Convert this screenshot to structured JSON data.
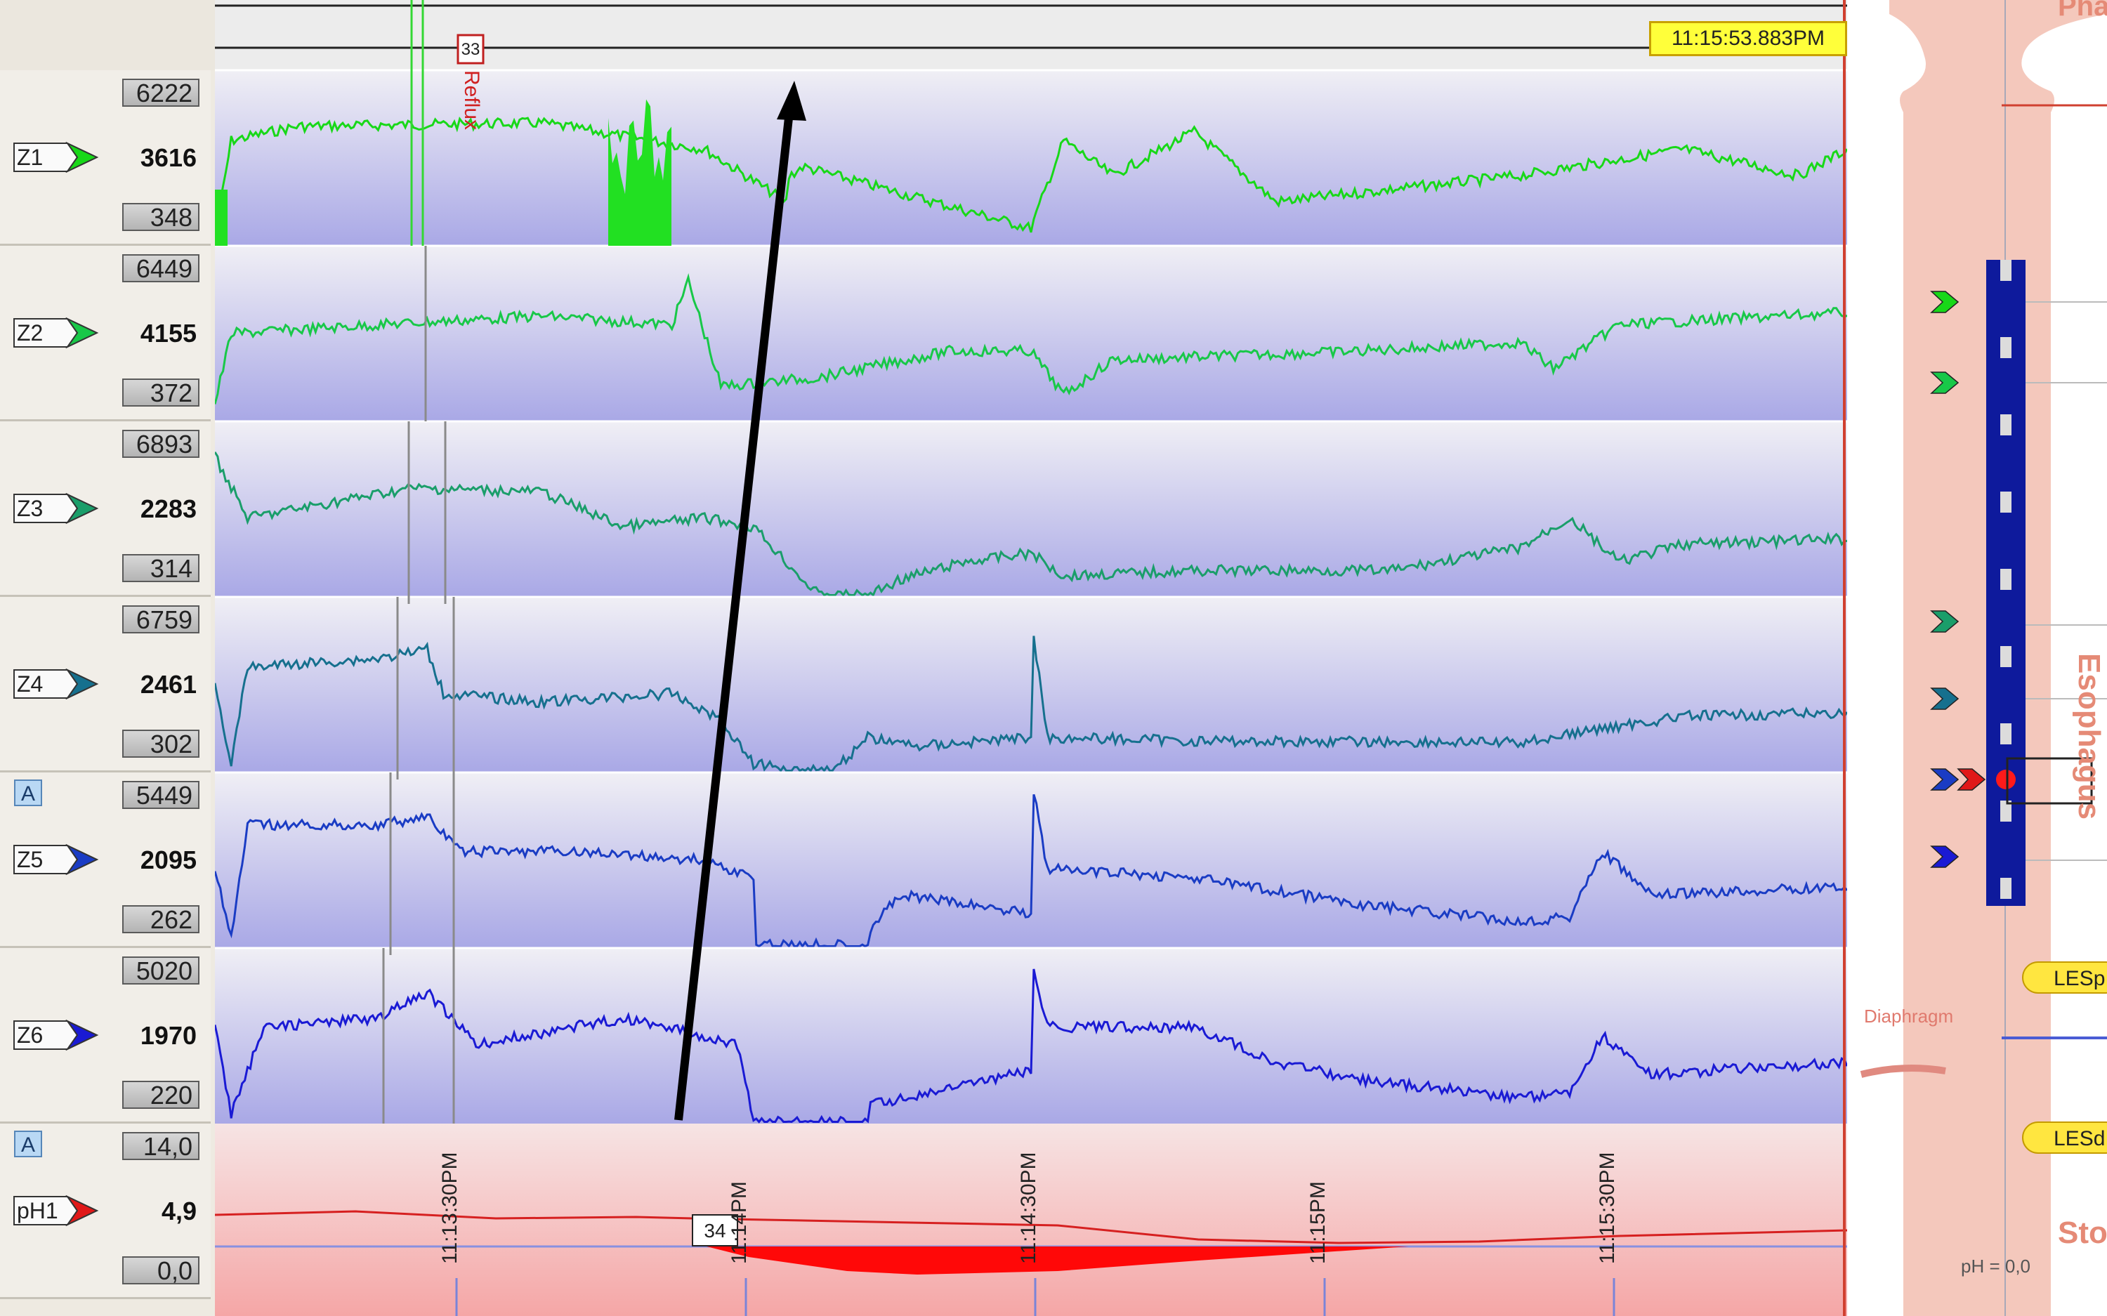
{
  "time_badge": "11:15:53.883PM",
  "channels": [
    {
      "id": "Z1",
      "max": "6222",
      "value": "3616",
      "min": "348",
      "color": "#18d818",
      "badge": false
    },
    {
      "id": "Z2",
      "max": "6449",
      "value": "4155",
      "min": "372",
      "color": "#18c848",
      "badge": false
    },
    {
      "id": "Z3",
      "max": "6893",
      "value": "2283",
      "min": "314",
      "color": "#1a9e6a",
      "badge": false
    },
    {
      "id": "Z4",
      "max": "6759",
      "value": "2461",
      "min": "302",
      "color": "#16708e",
      "badge": false
    },
    {
      "id": "Z5",
      "max": "5449",
      "value": "2095",
      "min": "262",
      "color": "#1a3cc4",
      "badge": true,
      "badge_label": "A"
    },
    {
      "id": "Z6",
      "max": "5020",
      "value": "1970",
      "min": "220",
      "color": "#1a1ad4",
      "badge": false
    }
  ],
  "ph_channel": {
    "id": "pH1",
    "max": "14,0",
    "value": "4,9",
    "min": "0,0",
    "color": "#e01818",
    "badge_label": "A"
  },
  "events": {
    "reflux_number": "33",
    "reflux_label": "Reflux",
    "ph_event_number": "34"
  },
  "time_ticks": [
    "11:13:30PM",
    "11:14PM",
    "11:14:30PM",
    "11:15PM",
    "11:15:30PM"
  ],
  "anatomy": {
    "top_label": "Pha",
    "esophagus_label": "Esophagus",
    "stomach_label": "Sto",
    "diaphragm_label": "Diaphragm",
    "les_proximal": "LESp",
    "les_distal": "LESd",
    "ph_readout": "pH = 0,0"
  },
  "colors": {
    "trace_bg_top": "#f0eff5",
    "trace_bg_bottom": "#a9a8e6",
    "ph_bg_top": "#f6e4e4",
    "ph_bg_bottom": "#f5a6a6",
    "anatomy_tissue": "#f4c8bc",
    "catheter": "#0e1a9c",
    "arrow": "#000000"
  }
}
